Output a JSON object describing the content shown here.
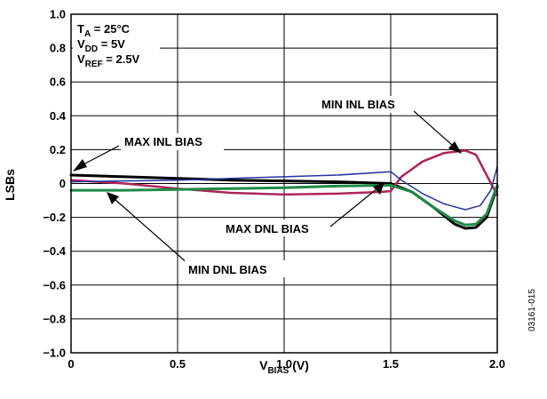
{
  "chart_data": {
    "type": "line",
    "title": "",
    "xlabel": "V",
    "xlabel_sub": "BIAS",
    "xlabel_unit": " (V)",
    "ylabel": "LSBs",
    "xlim": [
      0,
      2.0
    ],
    "ylim": [
      -1.0,
      1.0
    ],
    "x_ticks": [
      0,
      0.5,
      1.0,
      1.5,
      2.0
    ],
    "x_tick_labels": [
      "0",
      "0.5",
      "1.0",
      "1.5",
      "2.0"
    ],
    "y_ticks": [
      1.0,
      0.8,
      0.6,
      0.4,
      0.2,
      0,
      -0.2,
      -0.4,
      -0.6,
      -0.8,
      -1.0
    ],
    "y_tick_labels": [
      "1.0",
      "0.8",
      "0.6",
      "0.4",
      "0.2",
      "0",
      "−0.2",
      "−0.4",
      "−0.6",
      "−0.8",
      "−1.0"
    ],
    "grid": true,
    "conditions": [
      {
        "main": "T",
        "sub": "A",
        "rest": " = 25°C"
      },
      {
        "main": "V",
        "sub": "DD",
        "rest": " = 5V"
      },
      {
        "main": "V",
        "sub": "REF",
        "rest": " = 2.5V"
      }
    ],
    "series": [
      {
        "name": "MAX INL BIAS",
        "color": "#000000",
        "stroke_width": 3,
        "points": [
          [
            0,
            0.05
          ],
          [
            0.25,
            0.04
          ],
          [
            0.5,
            0.03
          ],
          [
            0.75,
            0.02
          ],
          [
            1.0,
            0.015
          ],
          [
            1.25,
            0.01
          ],
          [
            1.5,
            0.0
          ],
          [
            1.6,
            -0.05
          ],
          [
            1.7,
            -0.14
          ],
          [
            1.8,
            -0.24
          ],
          [
            1.85,
            -0.265
          ],
          [
            1.9,
            -0.26
          ],
          [
            1.95,
            -0.2
          ],
          [
            2.0,
            -0.02
          ]
        ]
      },
      {
        "name": "MIN INL BIAS",
        "color": "#b0245a",
        "stroke_width": 2.5,
        "points": [
          [
            0,
            0.02
          ],
          [
            0.25,
            0.0
          ],
          [
            0.5,
            -0.03
          ],
          [
            0.75,
            -0.055
          ],
          [
            1.0,
            -0.065
          ],
          [
            1.25,
            -0.06
          ],
          [
            1.45,
            -0.05
          ],
          [
            1.5,
            -0.045
          ],
          [
            1.55,
            0.04
          ],
          [
            1.65,
            0.13
          ],
          [
            1.75,
            0.18
          ],
          [
            1.85,
            0.195
          ],
          [
            1.9,
            0.17
          ],
          [
            1.95,
            0.05
          ],
          [
            2.0,
            -0.07
          ]
        ]
      },
      {
        "name": "MAX DNL BIAS",
        "color": "#24349c",
        "stroke_width": 1.5,
        "points": [
          [
            0,
            0.01
          ],
          [
            0.25,
            0.015
          ],
          [
            0.5,
            0.02
          ],
          [
            0.75,
            0.03
          ],
          [
            1.0,
            0.04
          ],
          [
            1.25,
            0.05
          ],
          [
            1.5,
            0.07
          ],
          [
            1.55,
            0.02
          ],
          [
            1.65,
            -0.06
          ],
          [
            1.75,
            -0.12
          ],
          [
            1.85,
            -0.155
          ],
          [
            1.92,
            -0.13
          ],
          [
            1.97,
            -0.04
          ],
          [
            2.0,
            0.1
          ]
        ]
      },
      {
        "name": "MIN DNL BIAS",
        "color": "#1f8a48",
        "stroke_width": 3,
        "points": [
          [
            0,
            -0.04
          ],
          [
            0.25,
            -0.04
          ],
          [
            0.5,
            -0.035
          ],
          [
            0.75,
            -0.03
          ],
          [
            1.0,
            -0.025
          ],
          [
            1.25,
            -0.015
          ],
          [
            1.5,
            -0.01
          ],
          [
            1.6,
            -0.05
          ],
          [
            1.7,
            -0.14
          ],
          [
            1.8,
            -0.22
          ],
          [
            1.85,
            -0.245
          ],
          [
            1.9,
            -0.24
          ],
          [
            1.95,
            -0.18
          ],
          [
            2.0,
            -0.01
          ]
        ]
      }
    ],
    "annotations": [
      {
        "text": "MAX INL BIAS",
        "point": [
          0.02,
          0.05
        ]
      },
      {
        "text": "MIN INL BIAS",
        "point": [
          1.83,
          0.19
        ]
      },
      {
        "text": "MAX DNL BIAS",
        "point": [
          1.48,
          0.05
        ]
      },
      {
        "text": "MIN DNL BIAS",
        "point": [
          0.18,
          -0.04
        ]
      }
    ],
    "figure_id": "03161-015"
  }
}
